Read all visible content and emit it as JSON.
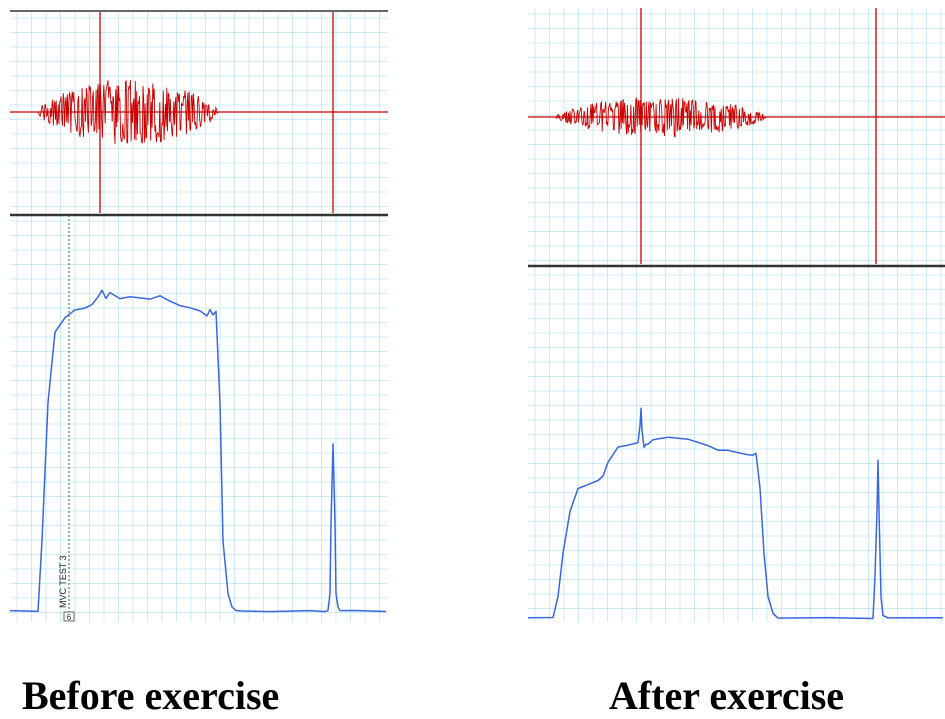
{
  "chart_data": [
    {
      "type": "line",
      "panel": "Before exercise",
      "caption": "Before exercise",
      "annotation": "MVC TEST 3",
      "marker_number": "6",
      "colors": {
        "emg": "#cc0000",
        "force": "#3a66e0",
        "grid": "#bfe6f2",
        "marker": "#1a7a3a"
      },
      "grid": true,
      "series": [
        {
          "channel": "emg",
          "signal": "raw EMG burst",
          "burst_x": [
            28,
            208
          ],
          "spikes": [
            {
              "x": 90,
              "ymin": -1.0,
              "ymax": 1.0
            },
            {
              "x": 323,
              "ymin": -1.0,
              "ymax": 1.0
            }
          ]
        },
        {
          "channel": "force",
          "x": [
            0,
            28,
            32,
            38,
            45,
            55,
            65,
            75,
            82,
            88,
            92,
            96,
            100,
            110,
            120,
            130,
            140,
            150,
            160,
            170,
            180,
            190,
            197,
            200,
            203,
            206,
            210,
            213,
            218,
            222,
            226,
            232,
            260,
            300,
            315,
            318,
            320,
            321,
            323,
            325,
            326,
            328,
            330,
            345,
            360,
            376
          ],
          "y": [
            0.0,
            0.0,
            0.2,
            0.6,
            0.8,
            0.84,
            0.86,
            0.87,
            0.88,
            0.9,
            0.92,
            0.9,
            0.91,
            0.89,
            0.9,
            0.9,
            0.89,
            0.9,
            0.89,
            0.88,
            0.87,
            0.86,
            0.84,
            0.86,
            0.85,
            0.86,
            0.6,
            0.2,
            0.05,
            0.01,
            0.0,
            0.0,
            0.0,
            0.0,
            0.0,
            0.0,
            0.05,
            0.25,
            0.48,
            0.25,
            0.05,
            0.01,
            0.0,
            0.0,
            0.0,
            0.0
          ]
        }
      ]
    },
    {
      "type": "line",
      "panel": "After exercise",
      "caption": "After exercise",
      "colors": {
        "emg": "#cc0000",
        "force": "#3a66e0",
        "grid": "#bfe6f2"
      },
      "grid": true,
      "series": [
        {
          "channel": "emg",
          "signal": "raw EMG burst",
          "burst_x": [
            28,
            238
          ],
          "spikes": [
            {
              "x": 113,
              "ymin": -1.0,
              "ymax": 1.0
            },
            {
              "x": 348,
              "ymin": -1.0,
              "ymax": 1.0
            }
          ]
        },
        {
          "channel": "force",
          "x": [
            0,
            25,
            30,
            35,
            42,
            50,
            60,
            70,
            75,
            80,
            90,
            100,
            110,
            112,
            113,
            114,
            116,
            118,
            120,
            125,
            140,
            160,
            180,
            190,
            200,
            210,
            220,
            225,
            228,
            232,
            236,
            240,
            245,
            250,
            300,
            345,
            347,
            349,
            350,
            351,
            353,
            355,
            360,
            415
          ],
          "y": [
            0.0,
            0.0,
            0.1,
            0.3,
            0.5,
            0.61,
            0.62,
            0.64,
            0.66,
            0.73,
            0.79,
            0.8,
            0.82,
            0.9,
            0.98,
            0.88,
            0.8,
            0.81,
            0.82,
            0.84,
            0.84,
            0.83,
            0.81,
            0.79,
            0.78,
            0.77,
            0.76,
            0.76,
            0.77,
            0.6,
            0.3,
            0.1,
            0.02,
            0.0,
            0.0,
            0.0,
            0.2,
            0.5,
            0.74,
            0.5,
            0.1,
            0.01,
            0.0,
            0.0
          ]
        }
      ]
    }
  ]
}
